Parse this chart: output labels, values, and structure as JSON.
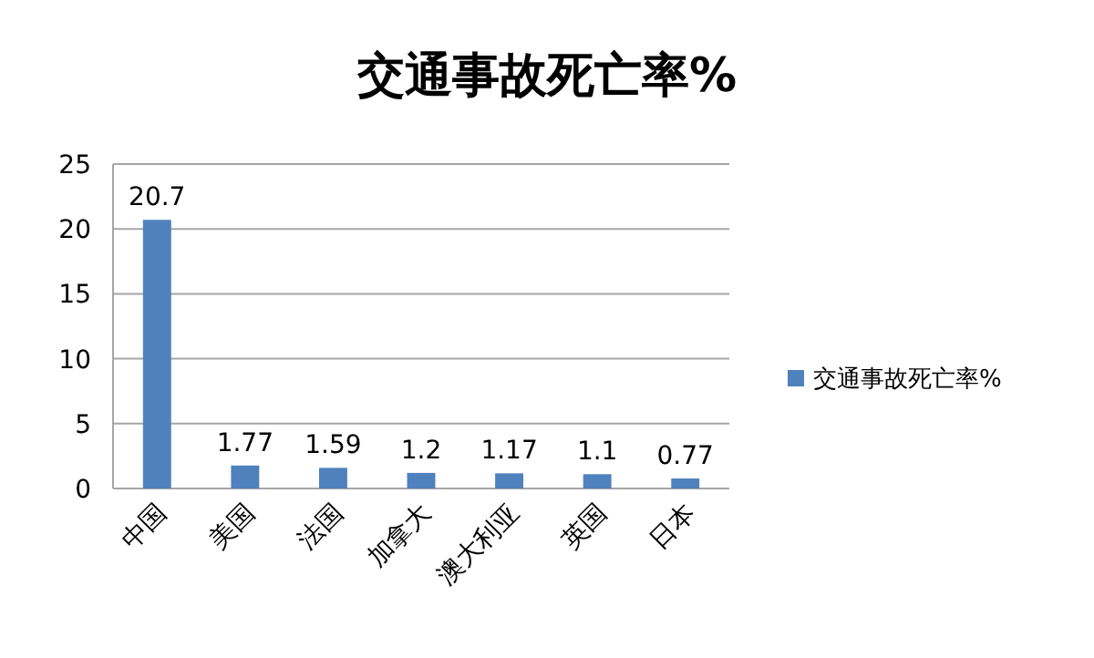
{
  "chart_data": {
    "type": "bar",
    "title": "交通事故死亡率%",
    "categories": [
      "中国",
      "美国",
      "法国",
      "加拿大",
      "澳大利亚",
      "英国",
      "日本"
    ],
    "series": [
      {
        "name": "交通事故死亡率%",
        "color": "#4f81bd",
        "values": [
          20.7,
          1.77,
          1.59,
          1.2,
          1.17,
          1.1,
          0.77
        ]
      }
    ],
    "ylim": [
      0,
      25
    ],
    "yticks": [
      0,
      5,
      10,
      15,
      20,
      25
    ],
    "grid": "y",
    "legend": "right",
    "data_labels": true
  }
}
